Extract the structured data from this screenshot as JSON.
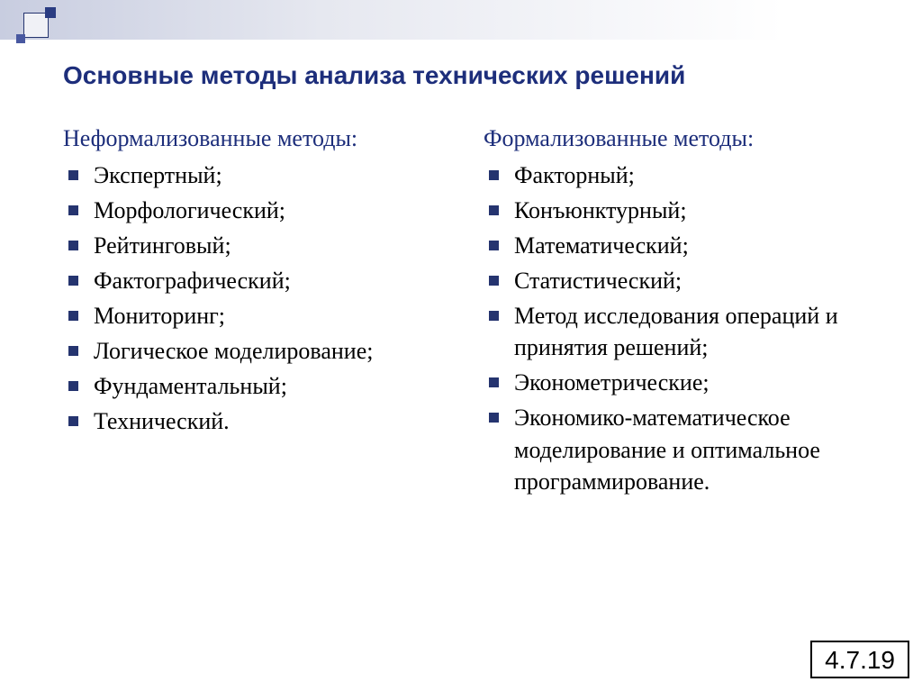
{
  "colors": {
    "heading": "#1d2e7b",
    "bullet": "#25346f",
    "body_text": "#000000",
    "background": "#ffffff",
    "gradient_from": "#c8cde0",
    "gradient_to": "#ffffff"
  },
  "typography": {
    "title_family": "Arial",
    "title_size_pt": 21,
    "title_weight": "bold",
    "heading_size_pt": 20,
    "body_family": "Times New Roman",
    "body_size_pt": 20
  },
  "title": "Основные методы анализа технических решений",
  "left": {
    "heading": "Неформализованные методы:",
    "items": [
      "Экспертный;",
      "Морфологический;",
      "Рейтинговый;",
      "Фактографический;",
      "Мониторинг;",
      "Логическое моделирование;",
      "Фундаментальный;",
      "Технический."
    ]
  },
  "right": {
    "heading": "Формализованные методы:",
    "items": [
      "Факторный;",
      "Конъюнктурный;",
      "Математический;",
      "Статистический;",
      "Метод исследования операций и принятия решений;",
      "Эконометрические;",
      "Экономико-математическое моделирование и оптимальное программирование."
    ]
  },
  "page_number": "4.7.19"
}
